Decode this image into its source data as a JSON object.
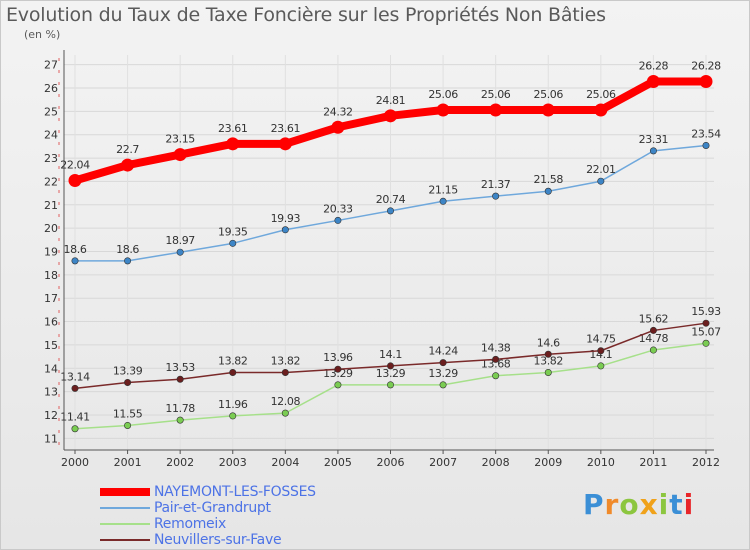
{
  "header": {
    "title": "Evolution du Taux de Taxe Foncière sur les Propriétés Non Bâties",
    "unit": "(en %)"
  },
  "logo": {
    "letters": [
      "P",
      "r",
      "o",
      "x",
      "i",
      "t",
      "i"
    ],
    "colors": [
      "#3b8fd6",
      "#f08a2a",
      "#8cc63f",
      "#f0a21a",
      "#8cc63f",
      "#3b8fd6",
      "#e8262a"
    ]
  },
  "chart_data": {
    "type": "line",
    "x": [
      "2000",
      "2001",
      "2002",
      "2003",
      "2004",
      "2005",
      "2006",
      "2007",
      "2008",
      "2009",
      "2010",
      "2011",
      "2012"
    ],
    "ylim": [
      10.5,
      27.2
    ],
    "yticks": [
      "11",
      "12",
      "13",
      "14",
      "15",
      "16",
      "17",
      "18",
      "19",
      "20",
      "21",
      "22",
      "23",
      "24",
      "25",
      "26",
      "27"
    ],
    "grid": true,
    "legend_position": "bottom-left",
    "series": [
      {
        "name": "NAYEMONT-LES-FOSSES",
        "values": [
          22.04,
          22.7,
          23.15,
          23.61,
          23.61,
          24.32,
          24.81,
          25.06,
          25.06,
          25.06,
          25.06,
          26.28,
          26.28
        ],
        "labels": [
          "22.04",
          "22.7",
          "23.15",
          "23.61",
          "23.61",
          "24.32",
          "24.81",
          "25.06",
          "25.06",
          "25.06",
          "25.06",
          "26.28",
          "26.28"
        ],
        "color": "#ff0000",
        "marker": "#ff0000"
      },
      {
        "name": "Pair-et-Grandrupt",
        "values": [
          18.6,
          18.6,
          18.97,
          19.35,
          19.93,
          20.33,
          20.74,
          21.15,
          21.37,
          21.58,
          22.01,
          23.31,
          23.54
        ],
        "labels": [
          "18.6",
          "18.6",
          "18.97",
          "19.35",
          "19.93",
          "20.33",
          "20.74",
          "21.15",
          "21.37",
          "21.58",
          "22.01",
          "23.31",
          "23.54"
        ],
        "color": "#6fa8dc",
        "marker": "#3d85c6"
      },
      {
        "name": "Remomeix",
        "values": [
          11.41,
          11.55,
          11.78,
          11.96,
          12.08,
          13.29,
          13.29,
          13.29,
          13.68,
          13.82,
          14.1,
          14.78,
          15.07
        ],
        "labels": [
          "11.41",
          "11.55",
          "11.78",
          "11.96",
          "12.08",
          "13.29",
          "13.29",
          "13.29",
          "13.68",
          "13.82",
          "14.1",
          "14.78",
          "15.07"
        ],
        "color": "#a6e08a",
        "marker": "#7acc52"
      },
      {
        "name": "Neuvillers-sur-Fave",
        "values": [
          13.14,
          13.39,
          13.53,
          13.82,
          13.82,
          13.96,
          14.1,
          14.24,
          14.38,
          14.6,
          14.75,
          15.62,
          15.93
        ],
        "labels": [
          "13.14",
          "13.39",
          "13.53",
          "13.82",
          "13.82",
          "13.96",
          "14.1",
          "14.24",
          "14.38",
          "14.6",
          "14.75",
          "15.62",
          "15.93"
        ],
        "color": "#7a2a2a",
        "marker": "#6b1e1e"
      }
    ]
  }
}
